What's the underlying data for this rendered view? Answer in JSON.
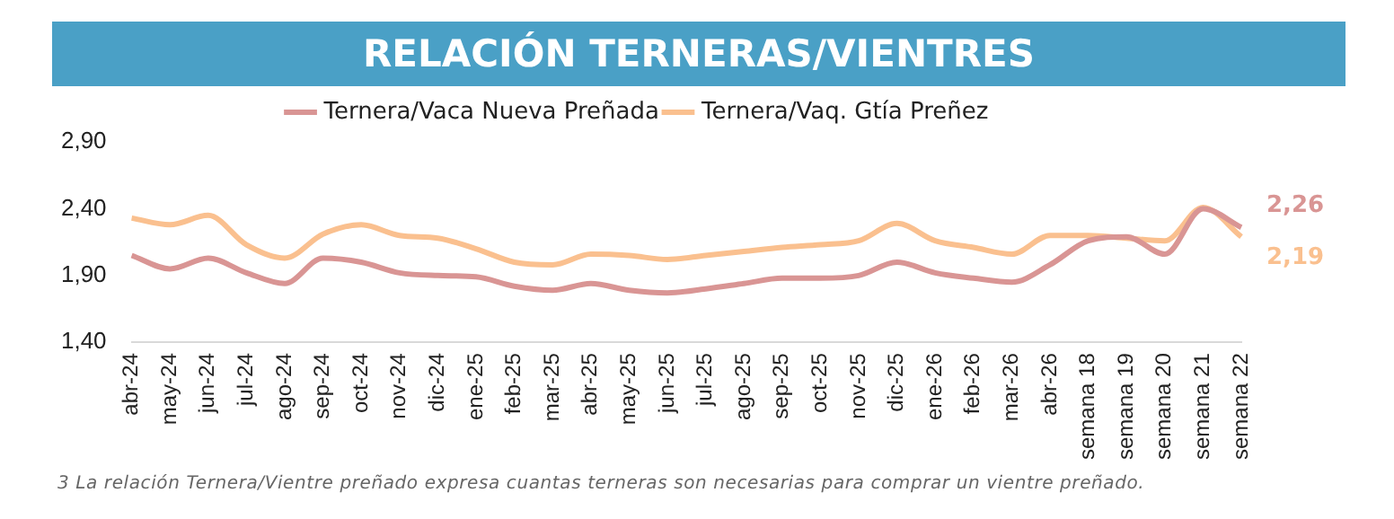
{
  "chart_data": {
    "type": "line",
    "title": "RELACIÓN TERNERAS/VIENTRES",
    "categories": [
      "abr-24",
      "may-24",
      "jun-24",
      "jul-24",
      "ago-24",
      "sep-24",
      "oct-24",
      "nov-24",
      "dic-24",
      "ene-25",
      "feb-25",
      "mar-25",
      "abr-25",
      "may-25",
      "jun-25",
      "jul-25",
      "ago-25",
      "sep-25",
      "oct-25",
      "nov-25",
      "dic-25",
      "ene-26",
      "feb-26",
      "mar-26",
      "abr-26",
      "semana 18",
      "semana 19",
      "semana 20",
      "semana 21",
      "semana 22"
    ],
    "series": [
      {
        "name": "Ternera/Vaca Nueva Preñada",
        "color": "#d99594",
        "values": [
          2.05,
          1.95,
          2.03,
          1.92,
          1.84,
          2.03,
          2.0,
          1.92,
          1.9,
          1.89,
          1.82,
          1.79,
          1.84,
          1.79,
          1.77,
          1.8,
          1.84,
          1.88,
          1.88,
          1.9,
          2.0,
          1.92,
          1.88,
          1.85,
          1.98,
          2.16,
          2.19,
          2.06,
          2.4,
          2.26
        ],
        "value_labels": [
          null,
          null,
          null,
          null,
          null,
          null,
          null,
          null,
          null,
          null,
          null,
          null,
          null,
          null,
          null,
          null,
          null,
          null,
          null,
          null,
          null,
          null,
          null,
          null,
          null,
          null,
          null,
          null,
          null,
          "2,26"
        ]
      },
      {
        "name": "Ternera/Vaq. Gtía Preñez",
        "color": "#fac08f",
        "values": [
          2.33,
          2.28,
          2.35,
          2.13,
          2.03,
          2.21,
          2.28,
          2.2,
          2.18,
          2.1,
          2.0,
          1.98,
          2.06,
          2.05,
          2.02,
          2.05,
          2.08,
          2.11,
          2.13,
          2.16,
          2.29,
          2.16,
          2.11,
          2.06,
          2.2,
          2.2,
          2.18,
          2.16,
          2.41,
          2.19
        ],
        "value_labels": [
          null,
          null,
          null,
          null,
          null,
          null,
          null,
          null,
          null,
          null,
          null,
          null,
          null,
          null,
          null,
          null,
          null,
          null,
          null,
          null,
          null,
          null,
          null,
          null,
          null,
          null,
          null,
          null,
          null,
          "2,19"
        ]
      }
    ],
    "ylim": [
      1.4,
      2.9
    ],
    "yticks": [
      {
        "value": 1.4,
        "label": "1,40"
      },
      {
        "value": 1.9,
        "label": "1,90"
      },
      {
        "value": 2.4,
        "label": "2,40"
      },
      {
        "value": 2.9,
        "label": "2,90"
      }
    ],
    "grid": false,
    "legend": "top",
    "marker": "none",
    "line_style": "solid",
    "annotations": [
      "3 La relación Ternera/Vientre preñado expresa cuantas terneras son necesarias para comprar un vientre preñado."
    ]
  }
}
